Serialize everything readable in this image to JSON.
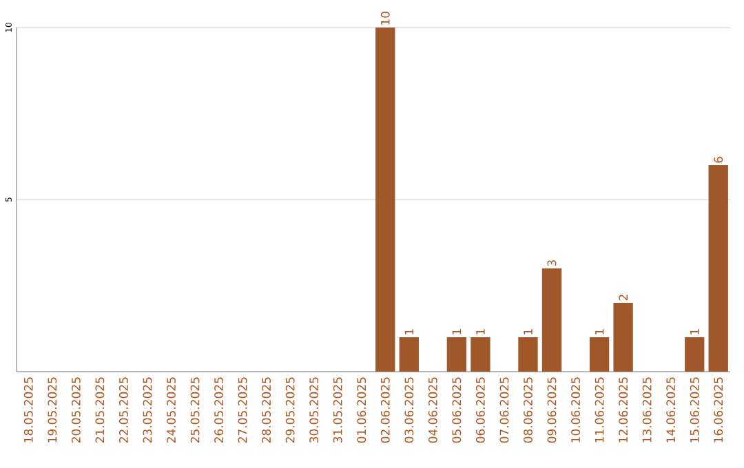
{
  "chart_data": {
    "type": "bar",
    "categories": [
      "18.05.2025",
      "19.05.2025",
      "20.05.2025",
      "21.05.2025",
      "22.05.2025",
      "23.05.2025",
      "24.05.2025",
      "25.05.2025",
      "26.05.2025",
      "27.05.2025",
      "28.05.2025",
      "29.05.2025",
      "30.05.2025",
      "31.05.2025",
      "01.06.2025",
      "02.06.2025",
      "03.06.2025",
      "04.06.2025",
      "05.06.2025",
      "06.06.2025",
      "07.06.2025",
      "08.06.2025",
      "09.06.2025",
      "10.06.2025",
      "11.06.2025",
      "12.06.2025",
      "13.06.2025",
      "14.06.2025",
      "15.06.2025",
      "16.06.2025"
    ],
    "values": [
      0,
      0,
      0,
      0,
      0,
      0,
      0,
      0,
      0,
      0,
      0,
      0,
      0,
      0,
      0,
      10,
      1,
      0,
      1,
      1,
      0,
      1,
      3,
      0,
      1,
      2,
      0,
      0,
      1,
      6
    ],
    "value_labels": [
      null,
      null,
      null,
      null,
      null,
      null,
      null,
      null,
      null,
      null,
      null,
      null,
      null,
      null,
      null,
      "10",
      "1",
      null,
      "1",
      "1",
      null,
      "1",
      "3",
      null,
      "1",
      "2",
      null,
      null,
      "1",
      "6"
    ],
    "color": "#a0572a",
    "ylim": [
      0,
      10
    ],
    "yticks": [
      5,
      10
    ],
    "grid": "y"
  }
}
